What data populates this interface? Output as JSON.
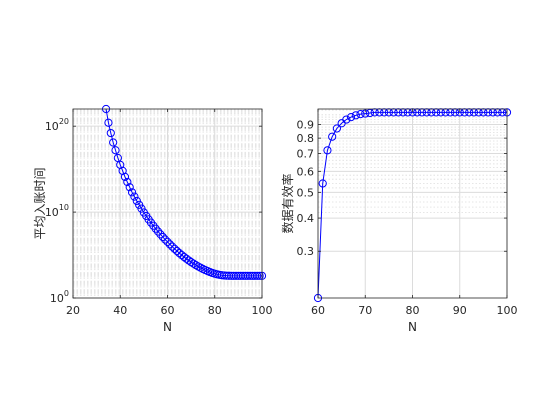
{
  "chart_data": [
    {
      "type": "line",
      "title": "",
      "xlabel": "N",
      "ylabel": "平均入账时间",
      "yscale": "log",
      "xlim": [
        20,
        100
      ],
      "ylim": [
        1,
        1e+22
      ],
      "xticks": [
        20,
        40,
        60,
        80,
        100
      ],
      "yticks": [
        1,
        10000000000.0,
        1e+20
      ],
      "ytick_labels": [
        {
          "base": "10",
          "exp": "0"
        },
        {
          "base": "10",
          "exp": "10"
        },
        {
          "base": "10",
          "exp": "20"
        }
      ],
      "grid": true,
      "color": "#0000ff",
      "marker": "o",
      "x": [
        34,
        35,
        36,
        37,
        38,
        39,
        40,
        41,
        42,
        43,
        44,
        45,
        46,
        47,
        48,
        49,
        50,
        51,
        52,
        53,
        54,
        55,
        56,
        57,
        58,
        59,
        60,
        61,
        62,
        63,
        64,
        65,
        66,
        67,
        68,
        69,
        70,
        71,
        72,
        73,
        74,
        75,
        76,
        77,
        78,
        79,
        80,
        81,
        82,
        83,
        84,
        85,
        86,
        87,
        88,
        89,
        90,
        91,
        92,
        93,
        94,
        95,
        96,
        97,
        98,
        99,
        100
      ],
      "log10_y": [
        22,
        20.4,
        19.2,
        18.1,
        17.2,
        16.3,
        15.5,
        14.8,
        14.1,
        13.5,
        12.9,
        12.3,
        11.8,
        11.3,
        10.85,
        10.4,
        9.95,
        9.55,
        9.15,
        8.78,
        8.42,
        8.07,
        7.74,
        7.42,
        7.11,
        6.81,
        6.53,
        6.25,
        5.98,
        5.72,
        5.47,
        5.23,
        5.0,
        4.78,
        4.57,
        4.37,
        4.18,
        4.0,
        3.83,
        3.67,
        3.52,
        3.38,
        3.25,
        3.13,
        3.02,
        2.92,
        2.83,
        2.76,
        2.7,
        2.65,
        2.62,
        2.6,
        2.59,
        2.58,
        2.58,
        2.58,
        2.58,
        2.58,
        2.58,
        2.58,
        2.58,
        2.58,
        2.58,
        2.58,
        2.58,
        2.58,
        2.58
      ]
    },
    {
      "type": "line",
      "title": "",
      "xlabel": "N",
      "ylabel": "数据有效率",
      "yscale": "log",
      "xlim": [
        60,
        100
      ],
      "ylim": [
        0.2,
        1.03
      ],
      "xticks": [
        60,
        70,
        80,
        90,
        100
      ],
      "yticks": [
        0.3,
        0.4,
        0.5,
        0.6,
        0.7,
        0.8,
        0.9
      ],
      "grid": true,
      "color": "#0000ff",
      "marker": "o",
      "x": [
        60,
        61,
        62,
        63,
        64,
        65,
        66,
        67,
        68,
        69,
        70,
        71,
        72,
        73,
        74,
        75,
        76,
        77,
        78,
        79,
        80,
        81,
        82,
        83,
        84,
        85,
        86,
        87,
        88,
        89,
        90,
        91,
        92,
        93,
        94,
        95,
        96,
        97,
        98,
        99,
        100
      ],
      "y": [
        0.2,
        0.54,
        0.72,
        0.81,
        0.87,
        0.91,
        0.94,
        0.96,
        0.975,
        0.985,
        0.99,
        0.995,
        1.0,
        1.0,
        1.0,
        1.0,
        1.0,
        1.0,
        1.0,
        1.0,
        1.0,
        1.0,
        1.0,
        1.0,
        1.0,
        1.0,
        1.0,
        1.0,
        1.0,
        1.0,
        1.0,
        1.0,
        1.0,
        1.0,
        1.0,
        1.0,
        1.0,
        1.0,
        1.0,
        1.0,
        1.0
      ]
    }
  ]
}
